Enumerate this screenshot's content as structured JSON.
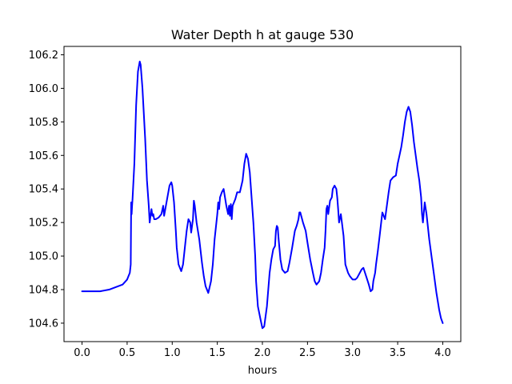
{
  "chart_data": {
    "type": "line",
    "title": "Water Depth h at gauge 530",
    "xlabel": "hours",
    "ylabel": "",
    "xlim": [
      -0.2,
      4.2
    ],
    "ylim": [
      104.49,
      106.25
    ],
    "x_ticks": [
      0.0,
      0.5,
      1.0,
      1.5,
      2.0,
      2.5,
      3.0,
      3.5,
      4.0
    ],
    "x_tick_labels": [
      "0.0",
      "0.5",
      "1.0",
      "1.5",
      "2.0",
      "2.5",
      "3.0",
      "3.5",
      "4.0"
    ],
    "y_ticks": [
      104.6,
      104.8,
      105.0,
      105.2,
      105.4,
      105.6,
      105.8,
      106.0,
      106.2
    ],
    "y_tick_labels": [
      "104.6",
      "104.8",
      "105.0",
      "105.2",
      "105.4",
      "105.6",
      "105.8",
      "106.0",
      "106.2"
    ],
    "grid": false,
    "series": [
      {
        "color": "#0000ff",
        "x": [
          0.0,
          0.2,
          0.3,
          0.4,
          0.45,
          0.5,
          0.53,
          0.54,
          0.545,
          0.55,
          0.555,
          0.56,
          0.58,
          0.6,
          0.62,
          0.64,
          0.65,
          0.67,
          0.7,
          0.72,
          0.74,
          0.75,
          0.77,
          0.78,
          0.79,
          0.8,
          0.82,
          0.85,
          0.88,
          0.9,
          0.91,
          0.92,
          0.93,
          0.95,
          0.97,
          0.99,
          1.0,
          1.02,
          1.04,
          1.05,
          1.07,
          1.1,
          1.12,
          1.14,
          1.16,
          1.18,
          1.2,
          1.21,
          1.22,
          1.23,
          1.24,
          1.25,
          1.27,
          1.3,
          1.33,
          1.35,
          1.37,
          1.4,
          1.43,
          1.45,
          1.47,
          1.5,
          1.51,
          1.52,
          1.53,
          1.55,
          1.57,
          1.6,
          1.62,
          1.63,
          1.64,
          1.65,
          1.66,
          1.67,
          1.7,
          1.72,
          1.75,
          1.78,
          1.8,
          1.82,
          1.84,
          1.86,
          1.88,
          1.9,
          1.92,
          1.93,
          1.95,
          1.98,
          2.0,
          2.02,
          2.05,
          2.08,
          2.1,
          2.12,
          2.14,
          2.15,
          2.16,
          2.17,
          2.18,
          2.2,
          2.22,
          2.25,
          2.28,
          2.3,
          2.33,
          2.36,
          2.38,
          2.4,
          2.41,
          2.42,
          2.45,
          2.48,
          2.5,
          2.53,
          2.56,
          2.58,
          2.6,
          2.63,
          2.65,
          2.67,
          2.69,
          2.7,
          2.71,
          2.72,
          2.73,
          2.75,
          2.77,
          2.78,
          2.8,
          2.82,
          2.83,
          2.84,
          2.85,
          2.87,
          2.9,
          2.92,
          2.95,
          2.97,
          3.0,
          3.03,
          3.05,
          3.08,
          3.1,
          3.12,
          3.15,
          3.18,
          3.2,
          3.22,
          3.23,
          3.25,
          3.26,
          3.28,
          3.3,
          3.33,
          3.36,
          3.38,
          3.4,
          3.42,
          3.45,
          3.48,
          3.5,
          3.52,
          3.54,
          3.56,
          3.58,
          3.6,
          3.62,
          3.64,
          3.66,
          3.68,
          3.7,
          3.72,
          3.74,
          3.76,
          3.77,
          3.78,
          3.8,
          3.82,
          3.83,
          3.85,
          3.88,
          3.9,
          3.93,
          3.96,
          3.98,
          4.0
        ],
        "values": [
          104.79,
          104.79,
          104.8,
          104.82,
          104.83,
          104.86,
          104.9,
          104.95,
          105.32,
          105.25,
          105.3,
          105.34,
          105.55,
          105.9,
          106.1,
          106.16,
          106.14,
          106.0,
          105.7,
          105.45,
          105.3,
          105.2,
          105.28,
          105.24,
          105.25,
          105.22,
          105.22,
          105.23,
          105.25,
          105.3,
          105.24,
          105.27,
          105.3,
          105.36,
          105.42,
          105.44,
          105.42,
          105.32,
          105.15,
          105.05,
          104.95,
          104.91,
          104.95,
          105.05,
          105.15,
          105.22,
          105.2,
          105.14,
          105.18,
          105.22,
          105.33,
          105.3,
          105.2,
          105.1,
          104.96,
          104.88,
          104.82,
          104.78,
          104.85,
          104.95,
          105.1,
          105.25,
          105.32,
          105.28,
          105.35,
          105.38,
          105.4,
          105.3,
          105.25,
          105.3,
          105.24,
          105.31,
          105.22,
          105.3,
          105.34,
          105.38,
          105.38,
          105.45,
          105.55,
          105.61,
          105.58,
          105.5,
          105.35,
          105.2,
          105.0,
          104.85,
          104.7,
          104.62,
          104.57,
          104.58,
          104.7,
          104.9,
          104.98,
          105.04,
          105.06,
          105.15,
          105.18,
          105.17,
          105.1,
          104.98,
          104.92,
          104.9,
          104.91,
          104.96,
          105.05,
          105.15,
          105.18,
          105.22,
          105.26,
          105.26,
          105.2,
          105.15,
          105.08,
          104.98,
          104.9,
          104.85,
          104.83,
          104.85,
          104.9,
          104.98,
          105.05,
          105.15,
          105.28,
          105.3,
          105.25,
          105.33,
          105.35,
          105.4,
          105.42,
          105.4,
          105.35,
          105.28,
          105.2,
          105.25,
          105.12,
          104.95,
          104.9,
          104.88,
          104.86,
          104.86,
          104.87,
          104.9,
          104.92,
          104.93,
          104.88,
          104.83,
          104.79,
          104.8,
          104.85,
          104.9,
          104.95,
          105.03,
          105.12,
          105.26,
          105.22,
          105.3,
          105.38,
          105.45,
          105.47,
          105.48,
          105.55,
          105.6,
          105.65,
          105.72,
          105.8,
          105.86,
          105.89,
          105.86,
          105.78,
          105.68,
          105.6,
          105.52,
          105.45,
          105.35,
          105.25,
          105.2,
          105.32,
          105.25,
          105.2,
          105.1,
          104.98,
          104.9,
          104.78,
          104.68,
          104.63,
          104.6
        ]
      }
    ]
  }
}
